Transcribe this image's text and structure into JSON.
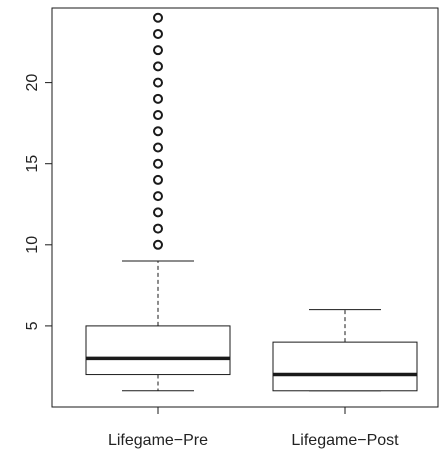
{
  "chart_data": {
    "type": "boxplot",
    "title": "",
    "xlabel": "",
    "ylabel": "",
    "ylim": [
      0,
      24.6
    ],
    "y_ticks": [
      5,
      10,
      15,
      20
    ],
    "y_tick_labels": [
      "5",
      "10",
      "15",
      "20"
    ],
    "categories": [
      "Lifegame−Pre",
      "Lifegame−Post"
    ],
    "boxes": [
      {
        "name": "Lifegame−Pre",
        "whisker_low": 1,
        "q1": 2,
        "median": 3,
        "q3": 5,
        "whisker_high": 9,
        "outliers": [
          10,
          11,
          12,
          13,
          14,
          15,
          16,
          17,
          18,
          19,
          20,
          21,
          22,
          23,
          24
        ]
      },
      {
        "name": "Lifegame−Post",
        "whisker_low": 1,
        "q1": 1,
        "median": 2,
        "q3": 4,
        "whisker_high": 6,
        "outliers": []
      }
    ],
    "grid": false,
    "legend": "none",
    "colors": {
      "box_fill": "#ffffff",
      "stroke": "#1a1a1a"
    }
  }
}
